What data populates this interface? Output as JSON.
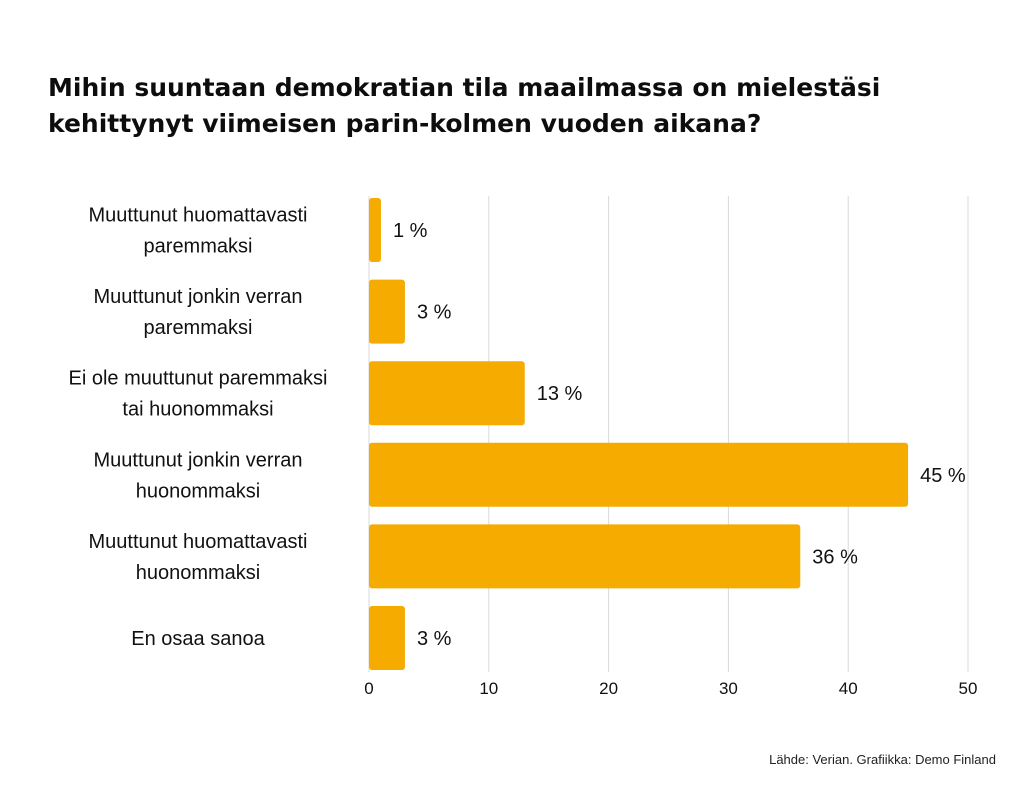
{
  "header": {
    "title_line1": "Mihin suuntaan demokratian tila maailmassa on mielestäsi",
    "title_line2": "kehittynyt viimeisen parin-kolmen vuoden aikana?"
  },
  "footer": {
    "source": "Lähde: Verian. Grafiikka:  Demo Finland"
  },
  "colors": {
    "bar": "#f5ab00",
    "grid": "#d9d9d9",
    "text": "#111111"
  },
  "chart_data": {
    "type": "bar",
    "orientation": "horizontal",
    "categories": [
      [
        "Muuttunut huomattavasti",
        "paremmaksi"
      ],
      [
        "Muuttunut jonkin verran",
        "paremmaksi"
      ],
      [
        "Ei ole muuttunut paremmaksi",
        "tai huonommaksi"
      ],
      [
        "Muuttunut jonkin verran",
        "huonommaksi"
      ],
      [
        "Muuttunut huomattavasti",
        "huonommaksi"
      ],
      [
        "En osaa sanoa"
      ]
    ],
    "values": [
      1,
      3,
      13,
      45,
      36,
      3
    ],
    "value_labels": [
      "1 %",
      "3 %",
      "13 %",
      "45 %",
      "36 %",
      "3 %"
    ],
    "x_ticks": [
      0,
      10,
      20,
      30,
      40,
      50
    ],
    "xlim": [
      0,
      50
    ],
    "grid": true,
    "legend": "none"
  }
}
